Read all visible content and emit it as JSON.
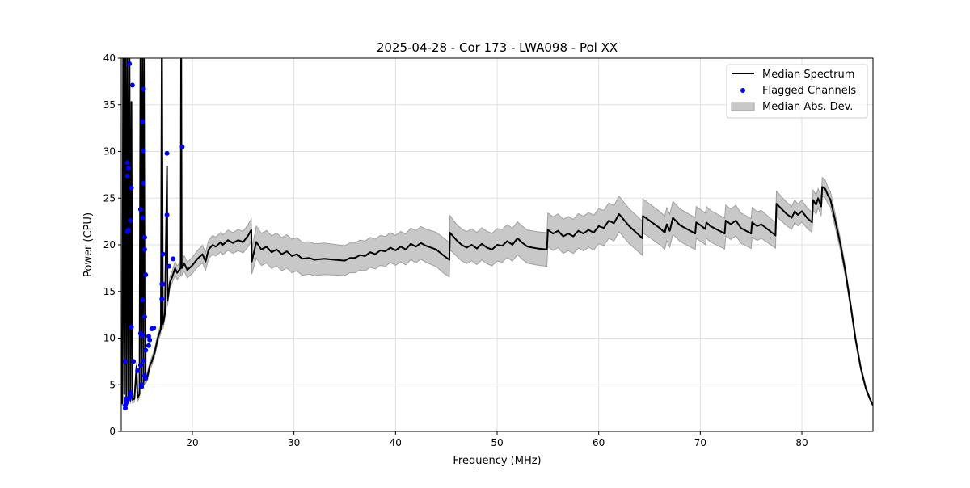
{
  "chart_data": {
    "type": "line",
    "title": "2025-04-28 - Cor 173 - LWA098 - Pol XX",
    "xlabel": "Frequency (MHz)",
    "ylabel": "Power (CPU)",
    "xlim": [
      13,
      87
    ],
    "ylim": [
      0,
      40
    ],
    "xticks": [
      20,
      30,
      40,
      50,
      60,
      70,
      80
    ],
    "yticks": [
      0,
      5,
      10,
      15,
      20,
      25,
      30,
      35,
      40
    ],
    "grid": true,
    "legend_position": "top-right",
    "legend": [
      "Median Spectrum",
      "Flagged Channels",
      "Median Abs. Dev."
    ],
    "colors": {
      "median": "#000000",
      "flagged": "#0000ff",
      "mad": "#c8c8c8",
      "mad_edge": "#a0a0a0",
      "grid": "#e0e0e0"
    },
    "median_spectrum": [
      [
        13.05,
        8.7
      ],
      [
        13.1,
        3
      ],
      [
        13.2,
        45
      ],
      [
        13.3,
        4
      ],
      [
        13.4,
        45
      ],
      [
        13.5,
        3.5
      ],
      [
        13.6,
        45
      ],
      [
        13.7,
        3.2
      ],
      [
        13.8,
        45
      ],
      [
        13.9,
        3.3
      ],
      [
        14.0,
        35.3
      ],
      [
        14.1,
        3.4
      ],
      [
        14.3,
        3.5
      ],
      [
        14.5,
        7
      ],
      [
        14.6,
        3.6
      ],
      [
        14.8,
        4
      ],
      [
        14.9,
        45
      ],
      [
        15.0,
        5
      ],
      [
        15.1,
        45
      ],
      [
        15.2,
        5
      ],
      [
        15.3,
        45
      ],
      [
        15.4,
        5.5
      ],
      [
        15.6,
        6
      ],
      [
        15.8,
        7
      ],
      [
        16,
        7.5
      ],
      [
        16.3,
        8.5
      ],
      [
        16.6,
        10
      ],
      [
        16.9,
        11
      ],
      [
        17.0,
        45
      ],
      [
        17.1,
        11.5
      ],
      [
        17.3,
        12.5
      ],
      [
        17.5,
        28.4
      ],
      [
        17.55,
        14
      ],
      [
        17.8,
        16
      ],
      [
        18,
        16.5
      ],
      [
        18.3,
        17.5
      ],
      [
        18.5,
        17
      ],
      [
        18.85,
        17.5
      ],
      [
        18.9,
        45
      ],
      [
        18.95,
        17.5
      ],
      [
        19.2,
        18
      ],
      [
        19.5,
        17.3
      ],
      [
        20,
        17.8
      ],
      [
        20.5,
        18.5
      ],
      [
        21,
        19
      ],
      [
        21.3,
        18.2
      ],
      [
        21.6,
        19.5
      ],
      [
        22,
        20
      ],
      [
        22.3,
        19.8
      ],
      [
        22.8,
        20.3
      ],
      [
        23,
        20
      ],
      [
        23.5,
        20.5
      ],
      [
        24,
        20.2
      ],
      [
        24.5,
        20.5
      ],
      [
        25,
        20.3
      ],
      [
        25.5,
        21
      ],
      [
        25.8,
        21.6
      ],
      [
        25.85,
        18.2
      ],
      [
        26.3,
        20.3
      ],
      [
        26.8,
        19.5
      ],
      [
        27.3,
        19.8
      ],
      [
        27.8,
        19.2
      ],
      [
        28.3,
        19.5
      ],
      [
        28.8,
        19
      ],
      [
        29.3,
        19.3
      ],
      [
        29.8,
        18.8
      ],
      [
        30.3,
        19
      ],
      [
        30.8,
        18.5
      ],
      [
        31.5,
        18.6
      ],
      [
        32,
        18.4
      ],
      [
        33,
        18.5
      ],
      [
        34,
        18.4
      ],
      [
        35,
        18.3
      ],
      [
        35.5,
        18.6
      ],
      [
        36,
        18.6
      ],
      [
        36.5,
        18.9
      ],
      [
        37,
        18.8
      ],
      [
        37.5,
        19.2
      ],
      [
        38,
        19
      ],
      [
        38.5,
        19.4
      ],
      [
        39,
        19.3
      ],
      [
        39.5,
        19.7
      ],
      [
        40,
        19.4
      ],
      [
        40.5,
        19.8
      ],
      [
        41,
        19.5
      ],
      [
        41.5,
        20.1
      ],
      [
        42,
        19.8
      ],
      [
        42.5,
        20.2
      ],
      [
        43,
        19.9
      ],
      [
        44,
        19.5
      ],
      [
        44.8,
        18.8
      ],
      [
        45.3,
        18.4
      ],
      [
        45.35,
        21.3
      ],
      [
        46,
        20.5
      ],
      [
        46.5,
        20
      ],
      [
        47,
        19.7
      ],
      [
        47.5,
        20
      ],
      [
        48,
        19.6
      ],
      [
        48.5,
        20.1
      ],
      [
        49,
        19.7
      ],
      [
        49.5,
        19.5
      ],
      [
        50,
        20
      ],
      [
        50.5,
        19.9
      ],
      [
        51,
        20.4
      ],
      [
        51.5,
        20
      ],
      [
        52,
        20.7
      ],
      [
        52.5,
        20.2
      ],
      [
        53,
        19.8
      ],
      [
        54,
        19.6
      ],
      [
        54.9,
        19.5
      ],
      [
        55,
        21.6
      ],
      [
        55.5,
        21.2
      ],
      [
        56,
        21.5
      ],
      [
        56.5,
        20.9
      ],
      [
        57,
        21.2
      ],
      [
        57.5,
        20.9
      ],
      [
        58,
        21.5
      ],
      [
        58.5,
        21.2
      ],
      [
        59,
        21.6
      ],
      [
        59.5,
        21.3
      ],
      [
        60,
        22
      ],
      [
        60.5,
        21.8
      ],
      [
        61,
        22.6
      ],
      [
        61.5,
        22.3
      ],
      [
        62,
        23.3
      ],
      [
        63,
        22
      ],
      [
        64.3,
        20.7
      ],
      [
        64.35,
        23.1
      ],
      [
        65,
        22.6
      ],
      [
        66,
        21.8
      ],
      [
        66.5,
        21.3
      ],
      [
        66.7,
        22.2
      ],
      [
        67,
        21.5
      ],
      [
        67.3,
        22.9
      ],
      [
        68,
        22.1
      ],
      [
        69.5,
        21.2
      ],
      [
        69.6,
        22.4
      ],
      [
        70,
        22.1
      ],
      [
        70.5,
        21.7
      ],
      [
        70.6,
        22.4
      ],
      [
        71,
        22
      ],
      [
        72.4,
        21.2
      ],
      [
        72.5,
        22.6
      ],
      [
        73,
        22.2
      ],
      [
        73.5,
        22.6
      ],
      [
        74,
        21.8
      ],
      [
        75,
        21.2
      ],
      [
        75.1,
        22.4
      ],
      [
        75.6,
        22
      ],
      [
        76,
        22.2
      ],
      [
        77.4,
        21
      ],
      [
        77.5,
        24.4
      ],
      [
        78.5,
        23.3
      ],
      [
        79,
        22.9
      ],
      [
        79.3,
        23.6
      ],
      [
        79.6,
        23.2
      ],
      [
        80,
        23.6
      ],
      [
        80.5,
        22.9
      ],
      [
        81,
        22.4
      ],
      [
        81.1,
        24.8
      ],
      [
        81.4,
        24.3
      ],
      [
        81.6,
        25
      ],
      [
        81.9,
        24.1
      ],
      [
        82,
        26.2
      ],
      [
        82.3,
        26
      ],
      [
        82.6,
        25.2
      ],
      [
        82.8,
        24.9
      ],
      [
        83.3,
        22.5
      ],
      [
        83.8,
        20
      ],
      [
        84.3,
        17
      ],
      [
        84.8,
        13.5
      ],
      [
        85.3,
        9.8
      ],
      [
        85.8,
        6.8
      ],
      [
        86.3,
        4.6
      ],
      [
        86.7,
        3.5
      ],
      [
        87,
        2.8
      ]
    ],
    "mad_halfwidth": [
      [
        13,
        0.3
      ],
      [
        17,
        0.5
      ],
      [
        19,
        0.8
      ],
      [
        22,
        1.0
      ],
      [
        25.8,
        1.2
      ],
      [
        26,
        1.7
      ],
      [
        30,
        1.8
      ],
      [
        35,
        1.6
      ],
      [
        40,
        1.6
      ],
      [
        45,
        1.9
      ],
      [
        46,
        1.7
      ],
      [
        55,
        1.8
      ],
      [
        62,
        1.9
      ],
      [
        65,
        1.8
      ],
      [
        75,
        1.6
      ],
      [
        78,
        1.3
      ],
      [
        82,
        1.0
      ],
      [
        84,
        0.6
      ],
      [
        87,
        0.1
      ]
    ],
    "flagged_channels": [
      [
        13.8,
        39.4
      ],
      [
        14.1,
        37.1
      ],
      [
        15.2,
        36.7
      ],
      [
        15.1,
        33.2
      ],
      [
        15.2,
        30.1
      ],
      [
        17.5,
        29.8
      ],
      [
        19.0,
        30.5
      ],
      [
        13.6,
        28.8
      ],
      [
        13.7,
        28.2
      ],
      [
        13.6,
        27.4
      ],
      [
        14.0,
        26.1
      ],
      [
        15.2,
        26.6
      ],
      [
        14.9,
        23.8
      ],
      [
        15.1,
        22.9
      ],
      [
        17.5,
        23.2
      ],
      [
        13.9,
        22.6
      ],
      [
        13.7,
        21.6
      ],
      [
        13.6,
        21.4
      ],
      [
        15.3,
        20.8
      ],
      [
        15.3,
        19.5
      ],
      [
        17.1,
        19.0
      ],
      [
        18.1,
        18.5
      ],
      [
        17.7,
        17.7
      ],
      [
        15.4,
        16.8
      ],
      [
        17.0,
        15.8
      ],
      [
        17.1,
        15.8
      ],
      [
        17.0,
        14.2
      ],
      [
        15.1,
        14.1
      ],
      [
        15.3,
        12.3
      ],
      [
        14.0,
        11.2
      ],
      [
        14.9,
        10.5
      ],
      [
        15.1,
        10.3
      ],
      [
        16.0,
        11.0
      ],
      [
        16.2,
        11.1
      ],
      [
        15.7,
        10.2
      ],
      [
        15.8,
        9.8
      ],
      [
        15.7,
        9.2
      ],
      [
        15.4,
        8.7
      ],
      [
        13.4,
        7.5
      ],
      [
        14.2,
        7.5
      ],
      [
        15.2,
        7.6
      ],
      [
        14.9,
        7.1
      ],
      [
        14.6,
        6.5
      ],
      [
        15.3,
        6.0
      ],
      [
        15.4,
        5.7
      ],
      [
        15.0,
        4.8
      ],
      [
        15.0,
        5.0
      ],
      [
        13.9,
        4.2
      ],
      [
        13.9,
        3.8
      ],
      [
        13.8,
        3.6
      ],
      [
        13.5,
        3.5
      ],
      [
        13.5,
        3.1
      ],
      [
        13.4,
        2.8
      ],
      [
        13.4,
        2.5
      ]
    ]
  }
}
